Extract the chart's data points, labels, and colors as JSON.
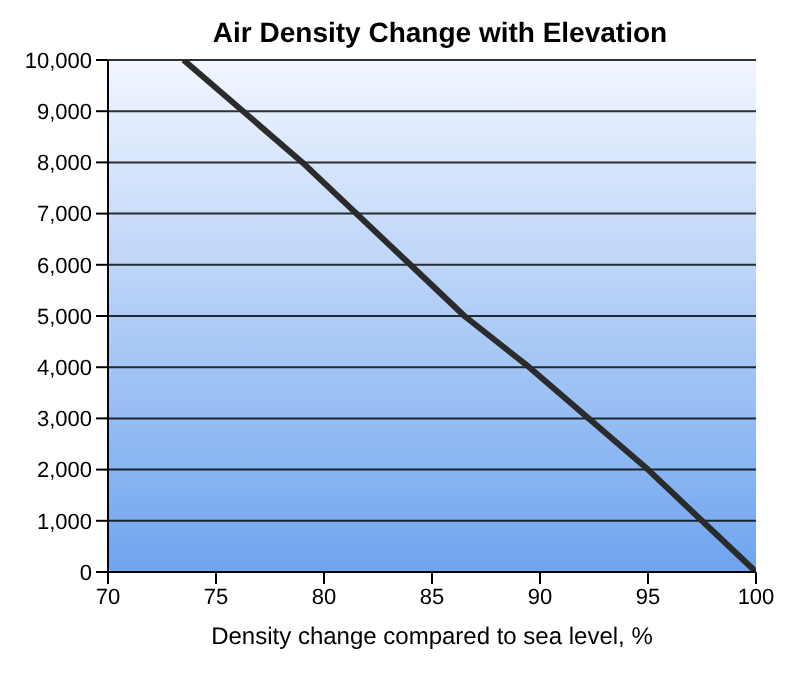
{
  "chart_data": {
    "type": "line",
    "title": "Air Density Change with Elevation",
    "xlabel": "Density change compared to sea level, %",
    "x": [
      100,
      95,
      89.5,
      86.5,
      84,
      79,
      73.5
    ],
    "series": [
      {
        "color": "#2b2b2b",
        "values": [
          0,
          2000,
          4000,
          5000,
          6000,
          8000,
          10000
        ]
      }
    ],
    "xlim": [
      70,
      100
    ],
    "xticks": [
      70,
      75,
      80,
      85,
      90,
      95,
      100
    ],
    "ylim": [
      0,
      10000
    ],
    "yticks": [
      0,
      {
        "value": 1000,
        "label": "1,000"
      },
      {
        "value": 2000,
        "label": "2,000"
      },
      {
        "value": 3000,
        "label": "3,000"
      },
      {
        "value": 4000,
        "label": "4,000"
      },
      {
        "value": 5000,
        "label": "5,000"
      },
      {
        "value": 6000,
        "label": "6,000"
      },
      {
        "value": 7000,
        "label": "7,000"
      },
      {
        "value": 8000,
        "label": "8,000"
      },
      {
        "value": 9000,
        "label": "9,000"
      },
      {
        "value": 10000,
        "label": "10,000"
      }
    ],
    "grid": "y",
    "marker": "none",
    "line_style": "solid"
  }
}
